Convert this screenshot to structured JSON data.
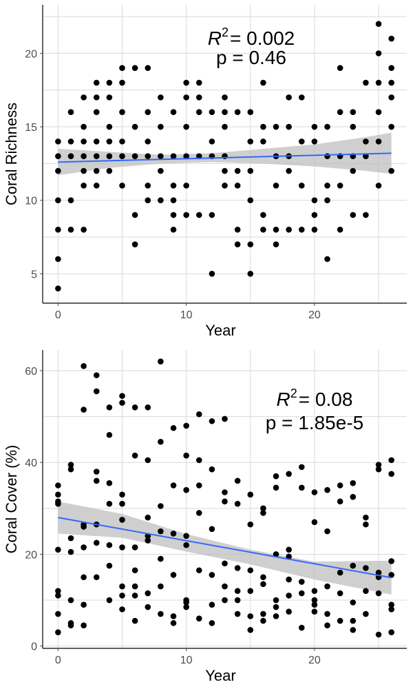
{
  "chart_data": [
    {
      "type": "scatter",
      "xlabel": "Year",
      "ylabel": "Coral Richness",
      "xlim": [
        -1.2,
        27.2
      ],
      "ylim": [
        3.0,
        23.3
      ],
      "xticks": [
        0,
        10,
        20
      ],
      "yticks": [
        5,
        10,
        15,
        20
      ],
      "grid": true,
      "annotation": {
        "r2_label": "R",
        "r2_sup": "2",
        "r2_value": "= 0.002",
        "p_text": "p = 0.46"
      },
      "fit": {
        "x": [
          0,
          26
        ],
        "y": [
          12.6,
          13.2
        ]
      },
      "ci": {
        "x": [
          0,
          4,
          8,
          12,
          16,
          20,
          24,
          26
        ],
        "lower": [
          11.7,
          12.2,
          12.5,
          12.6,
          12.5,
          12.3,
          12.0,
          11.8
        ],
        "upper": [
          13.5,
          13.3,
          13.1,
          13.2,
          13.5,
          13.8,
          14.3,
          14.6
        ]
      },
      "points": {
        "x": [
          0,
          0,
          0,
          0,
          0,
          0,
          0,
          1,
          1,
          1,
          1,
          1,
          2,
          2,
          2,
          2,
          2,
          2,
          2,
          3,
          3,
          3,
          3,
          3,
          3,
          3,
          4,
          4,
          4,
          4,
          4,
          4,
          5,
          5,
          5,
          5,
          5,
          5,
          6,
          6,
          6,
          6,
          6,
          7,
          7,
          7,
          7,
          7,
          7,
          8,
          8,
          8,
          8,
          8,
          9,
          9,
          9,
          9,
          9,
          9,
          10,
          10,
          10,
          10,
          10,
          10,
          11,
          11,
          11,
          11,
          11,
          12,
          12,
          12,
          12,
          12,
          13,
          13,
          13,
          13,
          13,
          13,
          14,
          14,
          14,
          14,
          14,
          15,
          15,
          15,
          15,
          15,
          15,
          16,
          16,
          16,
          16,
          16,
          17,
          17,
          17,
          17,
          17,
          18,
          18,
          18,
          18,
          18,
          19,
          19,
          19,
          19,
          20,
          20,
          20,
          20,
          20,
          21,
          21,
          21,
          21,
          21,
          22,
          22,
          22,
          22,
          22,
          23,
          23,
          23,
          23,
          23,
          24,
          24,
          24,
          24,
          25,
          25,
          25,
          25,
          25,
          25,
          26,
          26,
          26,
          26,
          26,
          26
        ],
        "y": [
          14,
          12,
          10,
          8,
          6,
          4,
          13,
          16,
          14,
          13,
          10,
          8,
          17,
          15,
          13,
          12,
          11,
          8,
          14,
          18,
          17,
          16,
          14,
          13,
          12,
          11,
          18,
          17,
          15,
          14,
          13,
          12,
          19,
          18,
          16,
          14,
          13,
          11,
          19,
          15,
          13,
          9,
          7,
          19,
          16,
          14,
          13,
          11,
          10,
          17,
          15,
          13,
          12,
          10,
          16,
          13,
          11,
          10,
          9,
          8,
          18,
          17,
          15,
          13,
          11,
          9,
          18,
          17,
          16,
          13,
          9,
          16,
          14,
          13,
          9,
          5,
          17,
          16,
          15,
          13,
          12,
          11,
          16,
          12,
          11,
          8,
          7,
          16,
          14,
          12,
          10,
          7,
          5,
          18,
          15,
          14,
          9,
          8,
          15,
          13,
          11,
          8,
          7,
          17,
          15,
          13,
          12,
          8,
          17,
          14,
          11,
          8,
          15,
          14,
          10,
          9,
          8,
          15,
          13,
          11,
          10,
          6,
          19,
          16,
          13,
          11,
          8,
          16,
          15,
          13,
          12,
          9,
          18,
          14,
          13,
          9,
          22,
          20,
          18,
          16,
          14,
          11,
          21,
          19,
          18,
          17,
          15,
          12
        ]
      }
    },
    {
      "type": "scatter",
      "xlabel": "Year",
      "ylabel": "Coral Cover (%)",
      "xlim": [
        -1.2,
        27.2
      ],
      "ylim": [
        -0.5,
        64.5
      ],
      "xticks": [
        0,
        10,
        20
      ],
      "yticks": [
        0,
        20,
        40,
        60
      ],
      "grid": true,
      "annotation": {
        "r2_label": "R",
        "r2_sup": "2",
        "r2_value": "= 0.08",
        "p_text": "p = 1.85e-5"
      },
      "fit": {
        "x": [
          0,
          26
        ],
        "y": [
          28.0,
          14.9
        ]
      },
      "ci": {
        "x": [
          0,
          5,
          10,
          15,
          20,
          26
        ],
        "lower": [
          24.5,
          23.6,
          20.6,
          17.8,
          14.5,
          11.2
        ],
        "upper": [
          31.5,
          28.8,
          24.4,
          21.0,
          18.4,
          18.6
        ]
      },
      "points": {
        "x": [
          0,
          0,
          0,
          0,
          0,
          0,
          0,
          0,
          0,
          1,
          1,
          1,
          1,
          1,
          1,
          1,
          2,
          2,
          2,
          2,
          2,
          2,
          2,
          2,
          3,
          3,
          3,
          3,
          3,
          3,
          3,
          4,
          4,
          4,
          4,
          4,
          4,
          4,
          5,
          5,
          5,
          5,
          5,
          5,
          5,
          5,
          5,
          6,
          6,
          6,
          6,
          6,
          6,
          6,
          7,
          7,
          7,
          7,
          7,
          7,
          7,
          8,
          8,
          8,
          8,
          8,
          8,
          8,
          9,
          9,
          9,
          9,
          9,
          9,
          10,
          10,
          10,
          10,
          10,
          10,
          10,
          10,
          11,
          11,
          11,
          11,
          11,
          11,
          12,
          12,
          12,
          12,
          12,
          12,
          13,
          13,
          13,
          13,
          13,
          13,
          14,
          14,
          14,
          14,
          14,
          14,
          15,
          15,
          15,
          15,
          15,
          15,
          16,
          16,
          16,
          16,
          16,
          16,
          17,
          17,
          17,
          17,
          17,
          17,
          18,
          18,
          18,
          18,
          18,
          18,
          19,
          19,
          19,
          19,
          19,
          20,
          20,
          20,
          20,
          20,
          20,
          21,
          21,
          21,
          21,
          21,
          22,
          22,
          22,
          22,
          22,
          23,
          23,
          23,
          23,
          23,
          23,
          24,
          24,
          24,
          24,
          24,
          25,
          25,
          25,
          25,
          25,
          25,
          26,
          26,
          26,
          26,
          26,
          26,
          26
        ],
        "y": [
          35,
          33,
          31,
          21,
          12,
          11,
          7,
          3,
          31.5,
          39.5,
          38.5,
          23.5,
          20.5,
          10,
          5,
          4.5,
          61,
          51.5,
          26.5,
          21.5,
          15,
          9,
          4.5,
          26,
          59,
          55.5,
          38,
          36,
          26.5,
          22.5,
          15,
          52,
          46,
          35.5,
          31,
          22,
          17.5,
          10,
          54.5,
          53,
          33,
          31,
          27.5,
          21.5,
          13,
          11,
          8,
          52,
          41.5,
          21.5,
          16.5,
          13,
          11,
          5.5,
          52,
          40.5,
          28,
          24,
          11.5,
          8.5,
          23,
          62,
          44.5,
          30.5,
          25,
          19,
          13,
          7,
          47.5,
          35,
          24.5,
          15.5,
          6.5,
          5,
          48,
          41.5,
          34,
          24,
          22,
          10,
          9.5,
          8.5,
          50.5,
          40.5,
          35,
          29,
          16.5,
          6,
          49,
          38.5,
          25.5,
          15.5,
          9,
          5,
          49.5,
          33.5,
          31.5,
          18,
          13,
          10,
          36,
          31,
          17,
          12,
          10,
          7,
          33,
          26.5,
          16.5,
          12,
          6.5,
          3.5,
          30,
          29,
          15,
          13.5,
          7,
          5.5,
          37,
          34.5,
          20,
          10,
          8.5,
          6.5,
          37.5,
          21,
          19.5,
          14.5,
          11,
          7.5,
          39,
          34.5,
          14,
          11.5,
          4,
          33.5,
          27,
          12,
          10,
          9,
          7.5,
          34,
          25,
          13,
          7,
          4.5,
          35,
          31.5,
          16,
          11.5,
          5.5,
          35.5,
          32.5,
          17.5,
          9.5,
          5.5,
          3.5,
          28,
          26.5,
          17,
          12,
          7,
          39.5,
          38.5,
          16,
          15,
          11.5,
          2.5,
          40.5,
          37.5,
          18.5,
          15.5,
          9,
          8,
          3
        ]
      }
    }
  ]
}
